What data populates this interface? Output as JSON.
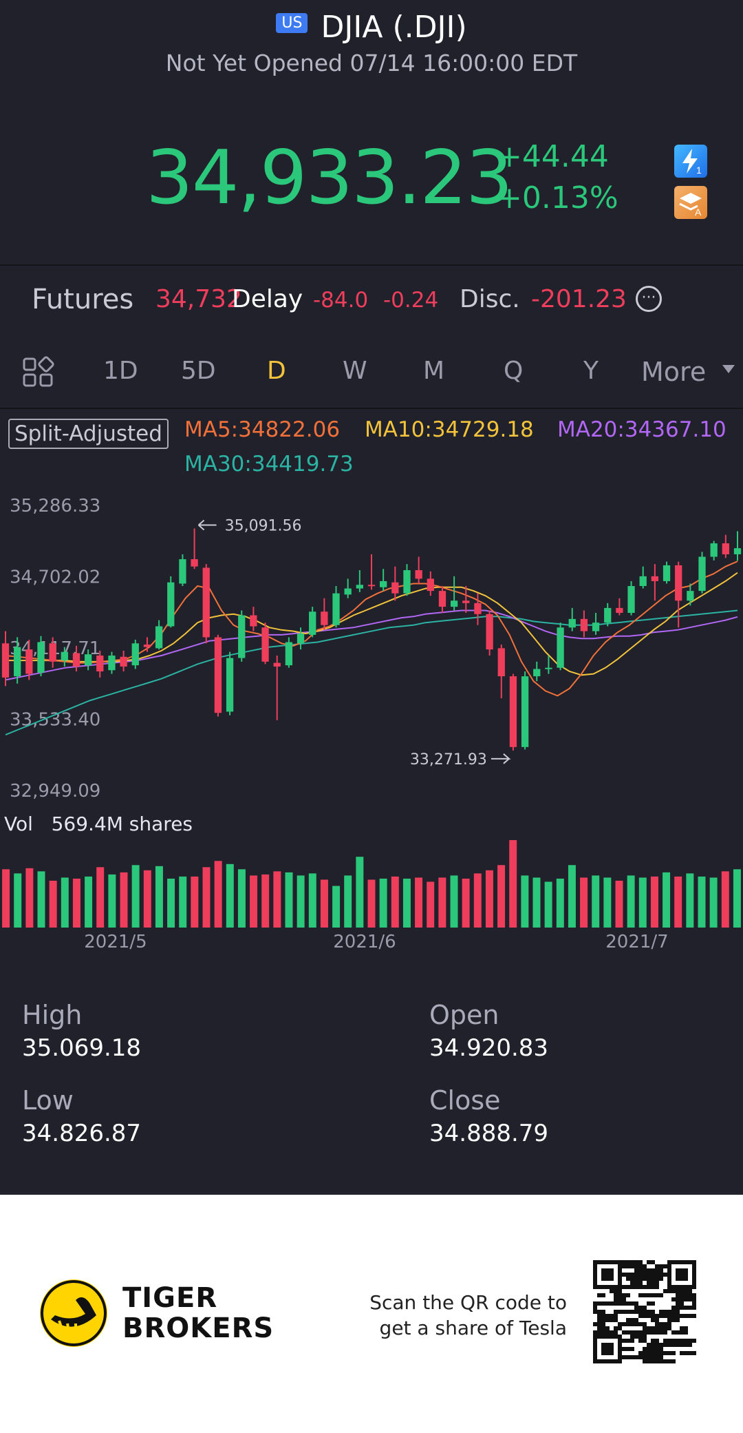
{
  "header": {
    "market_badge": "US",
    "title": "DJIA (.DJI)",
    "status": "Not Yet Opened 07/14 16:00:00 EDT"
  },
  "quote": {
    "price": "34,933.23",
    "change": "+44.44",
    "change_pct": "+0.13%",
    "up_color": "#2bc77a",
    "down_color": "#ef3e5c",
    "icons": [
      "lightning-level1-icon",
      "stack-level-a-icon"
    ]
  },
  "futures": {
    "label": "Futures",
    "value": "34,732",
    "delay": "Delay",
    "change": "-84.0",
    "change_pct": "-0.24",
    "disc_label": "Disc.",
    "disc_value": "-201.23"
  },
  "tabs": {
    "items": [
      {
        "label": "1D"
      },
      {
        "label": "5D"
      },
      {
        "label": "D"
      },
      {
        "label": "W"
      },
      {
        "label": "M"
      },
      {
        "label": "Q"
      },
      {
        "label": "Y"
      }
    ],
    "active": "D",
    "more_label": "More"
  },
  "indicators": {
    "split": "Split-Adjusted",
    "ma5": "MA5:34822.06",
    "ma10": "MA10:34729.18",
    "ma20": "MA20:34367.10",
    "ma30": "MA30:34419.73",
    "ma5_color": "#f2713a",
    "ma10_color": "#f2c33b",
    "ma20_color": "#b267f5",
    "ma30_color": "#2bb3a3"
  },
  "chart_data": {
    "type": "candlestick",
    "y_axis_labels": [
      "35,286.33",
      "34,702.02",
      "34,117.71",
      "33,533.40",
      "32,949.09"
    ],
    "ylim": [
      32949.09,
      35286.33
    ],
    "high_marker": "35,091.56",
    "low_marker": "33,271.93",
    "x_labels": [
      "2021/5",
      "2021/6",
      "2021/7"
    ],
    "candles": [
      {
        "o": 34150,
        "c": 33870,
        "h": 34250,
        "l": 33800
      },
      {
        "o": 33880,
        "c": 34120,
        "h": 34200,
        "l": 33820
      },
      {
        "o": 34100,
        "c": 33900,
        "h": 34180,
        "l": 33850
      },
      {
        "o": 33910,
        "c": 34160,
        "h": 34210,
        "l": 33880
      },
      {
        "o": 34150,
        "c": 34000,
        "h": 34200,
        "l": 33950
      },
      {
        "o": 34010,
        "c": 34080,
        "h": 34120,
        "l": 33960
      },
      {
        "o": 34070,
        "c": 33960,
        "h": 34130,
        "l": 33920
      },
      {
        "o": 33970,
        "c": 34060,
        "h": 34100,
        "l": 33930
      },
      {
        "o": 34050,
        "c": 33920,
        "h": 34090,
        "l": 33870
      },
      {
        "o": 33930,
        "c": 34050,
        "h": 34080,
        "l": 33900
      },
      {
        "o": 34040,
        "c": 33960,
        "h": 34090,
        "l": 33920
      },
      {
        "o": 33970,
        "c": 34150,
        "h": 34180,
        "l": 33940
      },
      {
        "o": 34140,
        "c": 34120,
        "h": 34200,
        "l": 34080
      },
      {
        "o": 34110,
        "c": 34290,
        "h": 34340,
        "l": 34100
      },
      {
        "o": 34290,
        "c": 34650,
        "h": 34700,
        "l": 34280
      },
      {
        "o": 34640,
        "c": 34840,
        "h": 34880,
        "l": 34620
      },
      {
        "o": 34840,
        "c": 34780,
        "h": 35091.56,
        "l": 34760
      },
      {
        "o": 34770,
        "c": 34200,
        "h": 34800,
        "l": 34150
      },
      {
        "o": 34200,
        "c": 33580,
        "h": 34220,
        "l": 33550
      },
      {
        "o": 33590,
        "c": 34030,
        "h": 34080,
        "l": 33560
      },
      {
        "o": 34030,
        "c": 34380,
        "h": 34420,
        "l": 34000
      },
      {
        "o": 34380,
        "c": 34290,
        "h": 34450,
        "l": 34250
      },
      {
        "o": 34280,
        "c": 34000,
        "h": 34320,
        "l": 33980
      },
      {
        "o": 33990,
        "c": 33960,
        "h": 34050,
        "l": 33520
      },
      {
        "o": 33970,
        "c": 34160,
        "h": 34200,
        "l": 33950
      },
      {
        "o": 34150,
        "c": 34230,
        "h": 34280,
        "l": 34100
      },
      {
        "o": 34220,
        "c": 34410,
        "h": 34450,
        "l": 34200
      },
      {
        "o": 34410,
        "c": 34300,
        "h": 34520,
        "l": 34260
      },
      {
        "o": 34300,
        "c": 34560,
        "h": 34620,
        "l": 34280
      },
      {
        "o": 34550,
        "c": 34600,
        "h": 34680,
        "l": 34520
      },
      {
        "o": 34600,
        "c": 34630,
        "h": 34750,
        "l": 34570
      },
      {
        "o": 34630,
        "c": 34620,
        "h": 34880,
        "l": 34590
      },
      {
        "o": 34610,
        "c": 34660,
        "h": 34760,
        "l": 34580
      },
      {
        "o": 34650,
        "c": 34560,
        "h": 34780,
        "l": 34500
      },
      {
        "o": 34560,
        "c": 34750,
        "h": 34800,
        "l": 34540
      },
      {
        "o": 34750,
        "c": 34680,
        "h": 34860,
        "l": 34640
      },
      {
        "o": 34680,
        "c": 34580,
        "h": 34740,
        "l": 34540
      },
      {
        "o": 34580,
        "c": 34450,
        "h": 34620,
        "l": 34400
      },
      {
        "o": 34450,
        "c": 34500,
        "h": 34700,
        "l": 34420
      },
      {
        "o": 34500,
        "c": 34480,
        "h": 34620,
        "l": 34400
      },
      {
        "o": 34480,
        "c": 34390,
        "h": 34560,
        "l": 34300
      },
      {
        "o": 34390,
        "c": 34100,
        "h": 34420,
        "l": 34050
      },
      {
        "o": 34110,
        "c": 33880,
        "h": 34140,
        "l": 33700
      },
      {
        "o": 33880,
        "c": 33300,
        "h": 33900,
        "l": 33271.93
      },
      {
        "o": 33300,
        "c": 33880,
        "h": 33920,
        "l": 33280
      },
      {
        "o": 33880,
        "c": 33940,
        "h": 34000,
        "l": 33840
      },
      {
        "o": 33940,
        "c": 33950,
        "h": 34050,
        "l": 33900
      },
      {
        "o": 33950,
        "c": 34280,
        "h": 34320,
        "l": 33930
      },
      {
        "o": 34280,
        "c": 34350,
        "h": 34440,
        "l": 34250
      },
      {
        "o": 34350,
        "c": 34250,
        "h": 34420,
        "l": 34200
      },
      {
        "o": 34250,
        "c": 34320,
        "h": 34400,
        "l": 34220
      },
      {
        "o": 34320,
        "c": 34440,
        "h": 34480,
        "l": 34290
      },
      {
        "o": 34440,
        "c": 34400,
        "h": 34520,
        "l": 34380
      },
      {
        "o": 34400,
        "c": 34620,
        "h": 34660,
        "l": 34380
      },
      {
        "o": 34620,
        "c": 34700,
        "h": 34780,
        "l": 34600
      },
      {
        "o": 34700,
        "c": 34660,
        "h": 34800,
        "l": 34500
      },
      {
        "o": 34660,
        "c": 34790,
        "h": 34820,
        "l": 34640
      },
      {
        "o": 34790,
        "c": 34500,
        "h": 34820,
        "l": 34280
      },
      {
        "o": 34500,
        "c": 34580,
        "h": 34640,
        "l": 34460
      },
      {
        "o": 34580,
        "c": 34860,
        "h": 34900,
        "l": 34560
      },
      {
        "o": 34860,
        "c": 34970,
        "h": 34990,
        "l": 34830
      },
      {
        "o": 34970,
        "c": 34880,
        "h": 35040,
        "l": 34850
      },
      {
        "o": 34880,
        "c": 34930,
        "h": 35069.18,
        "l": 34826.87
      }
    ],
    "volume_label": "Vol",
    "volume_value": "569.4M shares",
    "volumes": [
      56,
      52,
      57,
      54,
      45,
      48,
      47,
      49,
      58,
      51,
      53,
      60,
      55,
      59,
      47,
      49,
      49,
      58,
      64,
      61,
      56,
      50,
      51,
      54,
      53,
      50,
      52,
      46,
      40,
      50,
      68,
      46,
      47,
      49,
      47,
      48,
      44,
      48,
      50,
      47,
      52,
      55,
      60,
      84,
      50,
      48,
      44,
      47,
      60,
      48,
      50,
      48,
      45,
      50,
      48,
      49,
      53,
      49,
      52,
      49,
      48,
      54,
      56
    ],
    "ma_lines": {
      "ma5": [
        34050,
        34040,
        34030,
        34020,
        34010,
        34000,
        33990,
        33990,
        34000,
        34010,
        34020,
        34060,
        34120,
        34230,
        34380,
        34520,
        34620,
        34600,
        34420,
        34300,
        34250,
        34230,
        34200,
        34150,
        34130,
        34170,
        34260,
        34290,
        34350,
        34420,
        34510,
        34560,
        34600,
        34620,
        34640,
        34640,
        34620,
        34590,
        34560,
        34520,
        34470,
        34380,
        34220,
        34000,
        33840,
        33760,
        33720,
        33780,
        33900,
        34050,
        34160,
        34240,
        34300,
        34380,
        34460,
        34540,
        34600,
        34620,
        34680,
        34720,
        34780,
        34822
      ],
      "ma10": [
        34010,
        34010,
        34010,
        34010,
        34010,
        34010,
        34000,
        34000,
        34000,
        34000,
        34010,
        34020,
        34050,
        34090,
        34150,
        34230,
        34320,
        34360,
        34380,
        34390,
        34370,
        34330,
        34280,
        34260,
        34250,
        34230,
        34250,
        34280,
        34330,
        34380,
        34420,
        34460,
        34500,
        34540,
        34570,
        34600,
        34610,
        34610,
        34610,
        34580,
        34540,
        34480,
        34400,
        34320,
        34200,
        34080,
        33980,
        33920,
        33890,
        33900,
        33950,
        34020,
        34100,
        34180,
        34260,
        34330,
        34420,
        34480,
        34540,
        34600,
        34660,
        34729
      ],
      "ma20": [
        33850,
        33870,
        33890,
        33910,
        33930,
        33950,
        33960,
        33970,
        33980,
        33990,
        34000,
        34010,
        34030,
        34050,
        34080,
        34110,
        34140,
        34170,
        34180,
        34190,
        34200,
        34210,
        34220,
        34220,
        34230,
        34240,
        34250,
        34260,
        34270,
        34280,
        34300,
        34320,
        34340,
        34360,
        34370,
        34390,
        34400,
        34410,
        34420,
        34420,
        34420,
        34400,
        34370,
        34330,
        34290,
        34250,
        34220,
        34200,
        34190,
        34190,
        34200,
        34210,
        34210,
        34220,
        34240,
        34250,
        34260,
        34280,
        34300,
        34320,
        34340,
        34367
      ],
      "ma30": [
        33400,
        33440,
        33480,
        33520,
        33560,
        33600,
        33640,
        33680,
        33710,
        33740,
        33770,
        33800,
        33830,
        33860,
        33900,
        33940,
        33980,
        34010,
        34040,
        34060,
        34080,
        34100,
        34120,
        34130,
        34140,
        34150,
        34160,
        34180,
        34200,
        34220,
        34240,
        34260,
        34280,
        34290,
        34300,
        34320,
        34330,
        34340,
        34350,
        34360,
        34370,
        34370,
        34360,
        34350,
        34330,
        34320,
        34310,
        34300,
        34300,
        34300,
        34310,
        34320,
        34330,
        34340,
        34350,
        34360,
        34370,
        34380,
        34390,
        34400,
        34410,
        34420
      ]
    }
  },
  "stats": {
    "high_label": "High",
    "high_value": "35.069.18",
    "open_label": "Open",
    "open_value": "34.920.83",
    "low_label": "Low",
    "low_value": "34.826.87",
    "close_label": "Close",
    "close_value": "34.888.79"
  },
  "footer": {
    "brand_line1": "TIGER",
    "brand_line2": "BROKERS",
    "scan_line1": "Scan the QR code to",
    "scan_line2": "get a share of Tesla"
  }
}
